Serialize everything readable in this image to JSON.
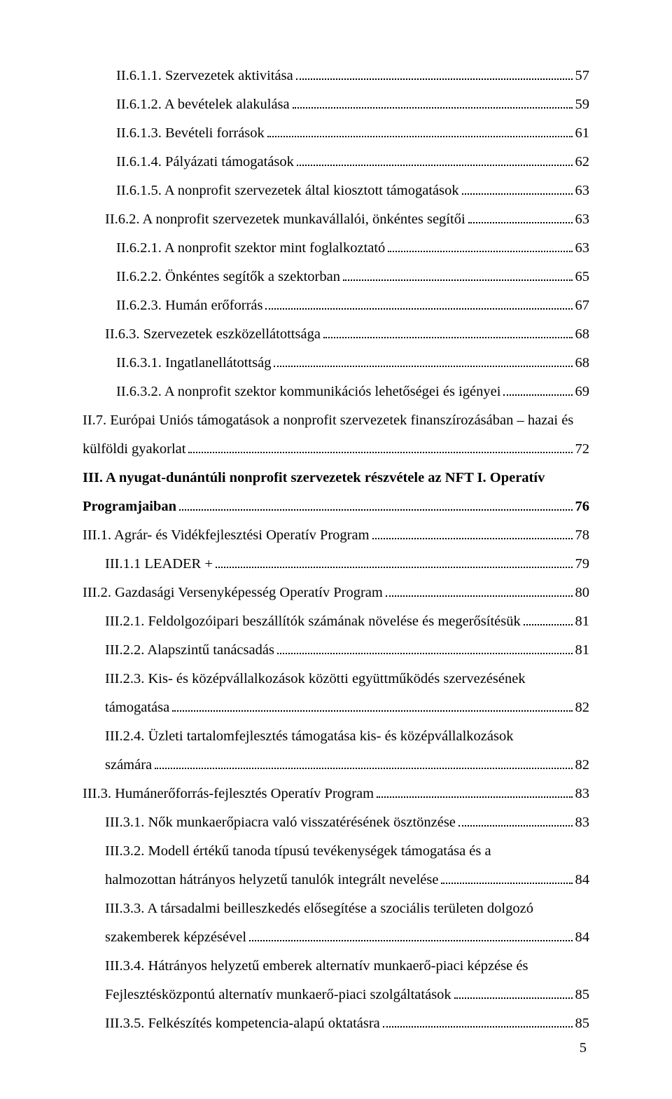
{
  "page_number": "5",
  "styles": {
    "font_family": "Times New Roman",
    "font_size_pt": 15,
    "text_color": "#000000",
    "background_color": "#ffffff",
    "dot_leader_color": "#000000"
  },
  "entries": [
    {
      "indent": 2,
      "bold": false,
      "title": "II.6.1.1. Szervezetek aktivitása",
      "page": "57"
    },
    {
      "indent": 2,
      "bold": false,
      "title": "II.6.1.2. A bevételek alakulása",
      "page": "59"
    },
    {
      "indent": 2,
      "bold": false,
      "title": "II.6.1.3. Bevételi források",
      "page": "61"
    },
    {
      "indent": 2,
      "bold": false,
      "title": "II.6.1.4. Pályázati támogatások",
      "page": "62"
    },
    {
      "indent": 2,
      "bold": false,
      "title": "II.6.1.5. A nonprofit szervezetek által kiosztott támogatások",
      "page": "63"
    },
    {
      "indent": 1,
      "bold": false,
      "title": "II.6.2. A nonprofit szervezetek munkavállalói, önkéntes segítői",
      "page": "63"
    },
    {
      "indent": 2,
      "bold": false,
      "title": "II.6.2.1. A nonprofit szektor mint foglalkoztató",
      "page": "63"
    },
    {
      "indent": 2,
      "bold": false,
      "title": "II.6.2.2. Önkéntes segítők a szektorban",
      "page": "65"
    },
    {
      "indent": 2,
      "bold": false,
      "title": "II.6.2.3. Humán erőforrás",
      "page": "67"
    },
    {
      "indent": 1,
      "bold": false,
      "title": "II.6.3. Szervezetek eszközellátottsága",
      "page": "68"
    },
    {
      "indent": 2,
      "bold": false,
      "title": "II.6.3.1. Ingatlanellátottság",
      "page": "68"
    },
    {
      "indent": 2,
      "bold": false,
      "title": "II.6.3.2. A nonprofit szektor kommunikációs lehetőségei és igényei",
      "page": "69"
    },
    {
      "indent": 0,
      "bold": false,
      "wrap": true,
      "line1": "II.7. Európai Uniós támogatások a nonprofit szervezetek finanszírozásában – hazai és",
      "line2": "külföldi gyakorlat",
      "page": "72"
    },
    {
      "indent": 0,
      "bold": true,
      "wrap": true,
      "line1": "III. A nyugat-dunántúli nonprofit szervezetek részvétele az NFT I. Operatív",
      "line2": "Programjaiban",
      "page": "76"
    },
    {
      "indent": 0,
      "bold": false,
      "title": "III.1. Agrár- és Vidékfejlesztési Operatív Program",
      "page": "78"
    },
    {
      "indent": 1,
      "bold": false,
      "title": "III.1.1 LEADER +",
      "page": "79"
    },
    {
      "indent": 0,
      "bold": false,
      "title": "III.2. Gazdasági Versenyképesség Operatív Program",
      "page": "80"
    },
    {
      "indent": 1,
      "bold": false,
      "title": "III.2.1. Feldolgozóipari beszállítók számának növelése és megerősítésük",
      "page": "81"
    },
    {
      "indent": 1,
      "bold": false,
      "title": "III.2.2. Alapszintű tanácsadás",
      "page": "81"
    },
    {
      "indent": 1,
      "bold": false,
      "wrap": true,
      "line1": "III.2.3. Kis- és középvállalkozások közötti együttműködés szervezésének",
      "line2": "támogatása",
      "page": "82"
    },
    {
      "indent": 1,
      "bold": false,
      "wrap": true,
      "line1": "III.2.4. Üzleti tartalomfejlesztés támogatása kis- és középvállalkozások",
      "line2": "számára",
      "page": "82"
    },
    {
      "indent": 0,
      "bold": false,
      "title": "III.3. Humánerőforrás-fejlesztés Operatív Program",
      "page": "83"
    },
    {
      "indent": 1,
      "bold": false,
      "title": "III.3.1. Nők munkaerőpiacra való visszatérésének ösztönzése",
      "page": "83"
    },
    {
      "indent": 1,
      "bold": false,
      "wrap": true,
      "line1": "III.3.2. Modell értékű tanoda típusú tevékenységek támogatása és a",
      "line2": "halmozottan hátrányos helyzetű tanulók integrált nevelése",
      "page": "84"
    },
    {
      "indent": 1,
      "bold": false,
      "wrap": true,
      "line1": "III.3.3. A társadalmi beilleszkedés elősegítése a szociális területen dolgozó",
      "line2": "szakemberek képzésével",
      "page": "84"
    },
    {
      "indent": 1,
      "bold": false,
      "wrap": true,
      "line1": "III.3.4. Hátrányos helyzetű emberek alternatív munkaerő-piaci képzése és",
      "line2": "Fejlesztésközpontú alternatív munkaerő-piaci szolgáltatások",
      "page": "85"
    },
    {
      "indent": 1,
      "bold": false,
      "title": "III.3.5. Felkészítés kompetencia-alapú oktatásra",
      "page": "85"
    }
  ]
}
